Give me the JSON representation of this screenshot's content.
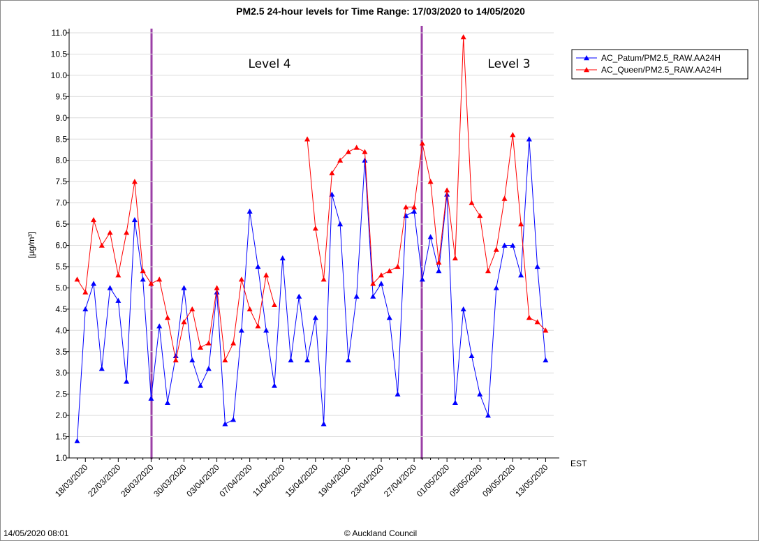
{
  "chart_data": {
    "type": "line",
    "title": "PM2.5 24-hour levels for Time Range: 17/03/2020 to 14/05/2020",
    "y_label": "[µg/m³]",
    "x_unit": "EST",
    "footer_left": "14/05/2020 08:01",
    "footer_center": "© Auckland Council",
    "annotations": [
      "Level 4",
      "Level 3"
    ],
    "categories": [
      null,
      "18/03/2020",
      null,
      null,
      null,
      "22/03/2020",
      null,
      null,
      null,
      "26/03/2020",
      null,
      null,
      null,
      "30/03/2020",
      null,
      null,
      null,
      "03/04/2020",
      null,
      null,
      null,
      "07/04/2020",
      null,
      null,
      null,
      "11/04/2020",
      null,
      null,
      null,
      "15/04/2020",
      null,
      null,
      null,
      "19/04/2020",
      null,
      null,
      null,
      "23/04/2020",
      null,
      null,
      null,
      "27/04/2020",
      null,
      null,
      null,
      "01/05/2020",
      null,
      null,
      null,
      "05/05/2020",
      null,
      null,
      null,
      "09/05/2020",
      null,
      null,
      null,
      "13/05/2020"
    ],
    "series": [
      {
        "name": "AC_Patum/PM2.5_RAW.AA24H",
        "color": "#0000ff",
        "values": [
          1.4,
          4.5,
          5.1,
          3.1,
          5.0,
          4.7,
          2.8,
          6.6,
          5.2,
          2.4,
          4.1,
          2.3,
          3.4,
          5.0,
          3.3,
          2.7,
          3.1,
          4.9,
          1.8,
          1.9,
          4.0,
          6.8,
          5.5,
          4.0,
          2.7,
          5.7,
          3.3,
          4.8,
          3.3,
          4.3,
          1.8,
          7.2,
          6.5,
          3.3,
          4.8,
          8.0,
          4.8,
          5.1,
          4.3,
          2.5,
          6.7,
          6.8,
          5.2,
          6.2,
          5.4,
          7.2,
          2.3,
          4.5,
          3.4,
          2.5,
          2.0,
          5.0,
          6.0,
          6.0,
          5.3,
          8.5,
          5.5,
          3.3
        ]
      },
      {
        "name": "AC_Queen/PM2.5_RAW.AA24H",
        "color": "#ff0000",
        "values": [
          5.2,
          4.9,
          6.6,
          6.0,
          6.3,
          5.3,
          6.3,
          7.5,
          5.4,
          5.1,
          5.2,
          4.3,
          3.3,
          4.2,
          4.5,
          3.6,
          3.7,
          5.0,
          3.3,
          3.7,
          5.2,
          4.5,
          4.1,
          5.3,
          4.6,
          null,
          null,
          null,
          8.5,
          6.4,
          5.2,
          7.7,
          8.0,
          8.2,
          8.3,
          8.2,
          5.1,
          5.3,
          5.4,
          5.5,
          6.9,
          6.9,
          8.4,
          7.5,
          5.6,
          7.3,
          5.7,
          10.9,
          7.0,
          6.7,
          5.4,
          5.9,
          7.1,
          8.6,
          6.5,
          4.3,
          4.2,
          4.0
        ]
      }
    ],
    "ylim": [
      1,
      11
    ],
    "yticks": [
      {
        "value": 1,
        "label": "1.0"
      },
      1.5,
      {
        "value": 2,
        "label": "2.0"
      },
      2.5,
      {
        "value": 3,
        "label": "3.0"
      },
      3.5,
      {
        "value": 4,
        "label": "4.0"
      },
      4.5,
      {
        "value": 5,
        "label": "5.0"
      },
      5.5,
      {
        "value": 6,
        "label": "6.0"
      },
      6.5,
      {
        "value": 7,
        "label": "7.0"
      },
      7.5,
      {
        "value": 8,
        "label": "8.0"
      },
      8.5,
      {
        "value": 9,
        "label": "9.0"
      },
      9.5,
      {
        "value": 10,
        "label": "10.0"
      },
      10.5,
      {
        "value": 11,
        "label": "11.0"
      }
    ],
    "grid": true,
    "legend": "top-right"
  }
}
